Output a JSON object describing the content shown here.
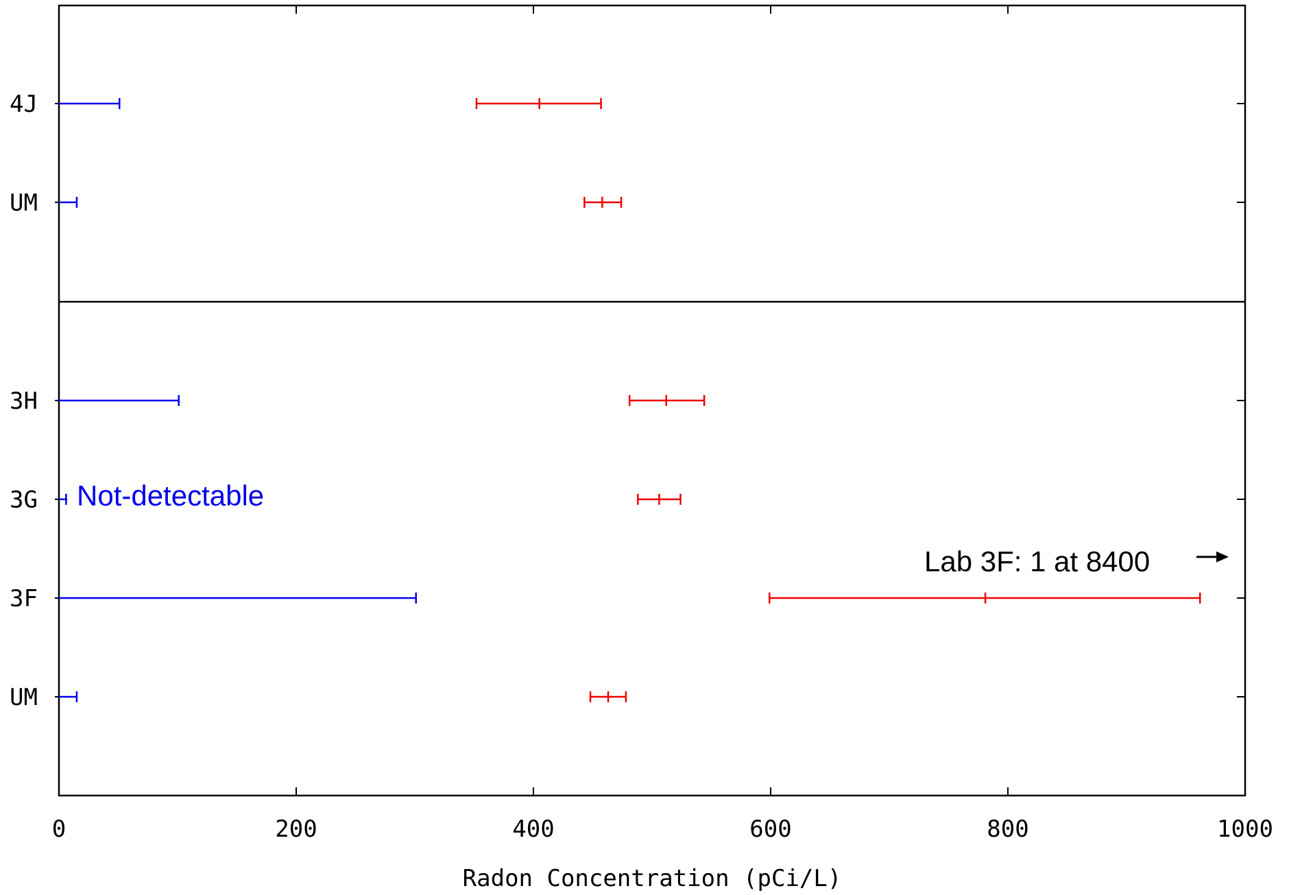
{
  "chart_data": {
    "type": "errorbar",
    "xlabel": "Radon Concentration (pCi/L)",
    "xlim": [
      0,
      1000
    ],
    "x_ticks": [
      "0",
      "200",
      "400",
      "600",
      "800",
      "1000"
    ],
    "x_tick_values": [
      0,
      200,
      400,
      600,
      800,
      1000
    ],
    "colors": {
      "blue": "#0000ee",
      "red": "#ee0000",
      "axis": "#000000"
    },
    "panels": [
      {
        "name": "top",
        "rows": [
          {
            "label": "4J",
            "blue": {
              "low": 0,
              "high": 51
            },
            "red": {
              "low": 352,
              "mid": 405,
              "high": 457
            }
          },
          {
            "label": "UM",
            "blue": {
              "low": 0,
              "high": 15
            },
            "red": {
              "low": 443,
              "mid": 458,
              "high": 474
            }
          }
        ]
      },
      {
        "name": "bottom",
        "rows": [
          {
            "label": "3H",
            "blue": {
              "low": 0,
              "high": 101
            },
            "red": {
              "low": 481,
              "mid": 512,
              "high": 544
            }
          },
          {
            "label": "3G",
            "blue": {
              "low": 0,
              "high": 6
            },
            "red": {
              "low": 488,
              "mid": 506,
              "high": 524
            }
          },
          {
            "label": "3F",
            "blue": {
              "low": 0,
              "high": 301
            },
            "red": {
              "low": 599,
              "mid": 781,
              "high": 962
            }
          },
          {
            "label": "UM",
            "blue": {
              "low": 0,
              "high": 15
            },
            "red": {
              "low": 448,
              "mid": 463,
              "high": 478
            }
          }
        ]
      }
    ],
    "annotations": {
      "not_detectable": "Not-detectable",
      "outlier": "Lab 3F: 1 at 8400",
      "outlier_arrow": "→"
    }
  }
}
